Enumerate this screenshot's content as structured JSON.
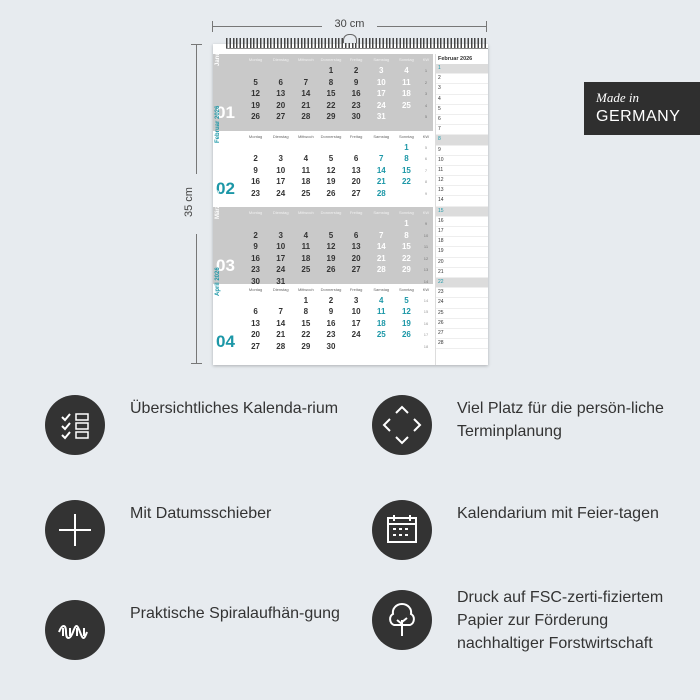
{
  "dims": {
    "width": "30 cm",
    "height": "35 cm"
  },
  "badge": {
    "line1": "Made in",
    "line2": "GERMANY"
  },
  "weekdays": [
    "Montag",
    "Dienstag",
    "Mittwoch",
    "Donnerstag",
    "Freitag",
    "Samstag",
    "Sonntag",
    "KW"
  ],
  "months": [
    {
      "name": "Januar 2026",
      "number": "01",
      "style": "gray",
      "weeks": [
        [
          "",
          "",
          "",
          "1",
          "2",
          "3",
          "4",
          "1"
        ],
        [
          "5",
          "6",
          "7",
          "8",
          "9",
          "10",
          "11",
          "2"
        ],
        [
          "12",
          "13",
          "14",
          "15",
          "16",
          "17",
          "18",
          "3"
        ],
        [
          "19",
          "20",
          "21",
          "22",
          "23",
          "24",
          "25",
          "4"
        ],
        [
          "26",
          "27",
          "28",
          "29",
          "30",
          "31",
          "",
          "5"
        ]
      ]
    },
    {
      "name": "Februar 2026",
      "number": "02",
      "style": "white",
      "weeks": [
        [
          "",
          "",
          "",
          "",
          "",
          "",
          "1",
          "5"
        ],
        [
          "2",
          "3",
          "4",
          "5",
          "6",
          "7",
          "8",
          "6"
        ],
        [
          "9",
          "10",
          "11",
          "12",
          "13",
          "14",
          "15",
          "7"
        ],
        [
          "16",
          "17",
          "18",
          "19",
          "20",
          "21",
          "22",
          "8"
        ],
        [
          "23",
          "24",
          "25",
          "26",
          "27",
          "28",
          "",
          "9"
        ]
      ]
    },
    {
      "name": "März 2026",
      "number": "03",
      "style": "gray",
      "weeks": [
        [
          "",
          "",
          "",
          "",
          "",
          "",
          "1",
          "9"
        ],
        [
          "2",
          "3",
          "4",
          "5",
          "6",
          "7",
          "8",
          "10"
        ],
        [
          "9",
          "10",
          "11",
          "12",
          "13",
          "14",
          "15",
          "11"
        ],
        [
          "16",
          "17",
          "18",
          "19",
          "20",
          "21",
          "22",
          "12"
        ],
        [
          "23",
          "24",
          "25",
          "26",
          "27",
          "28",
          "29",
          "13"
        ],
        [
          "30",
          "31",
          "",
          "",
          "",
          "",
          "",
          "14"
        ]
      ]
    },
    {
      "name": "April 2026",
      "number": "04",
      "style": "white",
      "weeks": [
        [
          "",
          "",
          "1",
          "2",
          "3",
          "4",
          "5",
          "14"
        ],
        [
          "6",
          "7",
          "8",
          "9",
          "10",
          "11",
          "12",
          "15"
        ],
        [
          "13",
          "14",
          "15",
          "16",
          "17",
          "18",
          "19",
          "16"
        ],
        [
          "20",
          "21",
          "22",
          "23",
          "24",
          "25",
          "26",
          "17"
        ],
        [
          "27",
          "28",
          "29",
          "30",
          "",
          "",
          "",
          "18"
        ]
      ]
    }
  ],
  "slider": {
    "title": "Februar 2026",
    "days": [
      "1",
      "2",
      "3",
      "4",
      "5",
      "6",
      "7",
      "8",
      "9",
      "10",
      "11",
      "12",
      "13",
      "14",
      "15",
      "16",
      "17",
      "18",
      "19",
      "20",
      "21",
      "22",
      "23",
      "24",
      "25",
      "26",
      "27",
      "28"
    ],
    "highlight": [
      "1",
      "8",
      "15",
      "22"
    ]
  },
  "features": [
    {
      "icon": "checklist-icon",
      "text": "Übersichtliches Kalenda-rium"
    },
    {
      "icon": "arrows-icon",
      "text": "Viel Platz für die persön-liche Terminplanung"
    },
    {
      "icon": "plus-icon",
      "text": "Mit Datumsschieber"
    },
    {
      "icon": "calendar-icon",
      "text": "Kalendarium mit Feier-tagen"
    },
    {
      "icon": "spiral-icon",
      "text": "Praktische Spiralaufhän-gung"
    },
    {
      "icon": "tree-icon",
      "text": "Druck auf FSC-zerti-fiziertem Papier zur Förderung nachhaltiger Forstwirtschaft"
    }
  ]
}
